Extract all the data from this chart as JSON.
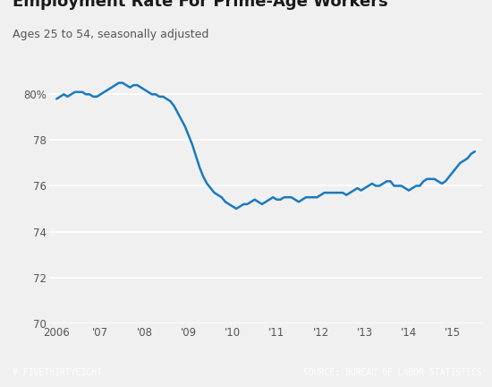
{
  "title": "Employment Rate For Prime-Age Workers",
  "subtitle": "Ages 25 to 54, seasonally adjusted",
  "background_color": "#f0f0f0",
  "plot_background_color": "#f0f0f0",
  "line_color": "#1a7abf",
  "line_width": 1.8,
  "footer_bg_color": "#3d3d3d",
  "footer_text_left": "Ψ FIVETHIRTYEIGHT",
  "footer_text_right": "SOURCE: BUREAU OF LABOR STATISTICS",
  "ylim": [
    70,
    81.5
  ],
  "yticks": [
    70,
    72,
    74,
    76,
    78,
    80
  ],
  "xlabel_labels": [
    "2006",
    "'07",
    "'08",
    "'09",
    "'10",
    "'11",
    "'12",
    "'13",
    "'14",
    "'15"
  ],
  "months": [
    79.8,
    79.9,
    80.0,
    79.9,
    80.0,
    80.1,
    80.1,
    80.1,
    80.0,
    80.0,
    79.9,
    79.9,
    80.0,
    80.1,
    80.2,
    80.3,
    80.4,
    80.5,
    80.5,
    80.4,
    80.3,
    80.4,
    80.4,
    80.3,
    80.2,
    80.1,
    80.0,
    80.0,
    79.9,
    79.9,
    79.8,
    79.7,
    79.5,
    79.2,
    78.9,
    78.6,
    78.2,
    77.8,
    77.3,
    76.8,
    76.4,
    76.1,
    75.9,
    75.7,
    75.6,
    75.5,
    75.3,
    75.2,
    75.1,
    75.0,
    75.1,
    75.2,
    75.2,
    75.3,
    75.4,
    75.3,
    75.2,
    75.3,
    75.4,
    75.5,
    75.4,
    75.4,
    75.5,
    75.5,
    75.5,
    75.4,
    75.3,
    75.4,
    75.5,
    75.5,
    75.5,
    75.5,
    75.6,
    75.7,
    75.7,
    75.7,
    75.7,
    75.7,
    75.7,
    75.6,
    75.7,
    75.8,
    75.9,
    75.8,
    75.9,
    76.0,
    76.1,
    76.0,
    76.0,
    76.1,
    76.2,
    76.2,
    76.0,
    76.0,
    76.0,
    75.9,
    75.8,
    75.9,
    76.0,
    76.0,
    76.2,
    76.3,
    76.3,
    76.3,
    76.2,
    76.1,
    76.2,
    76.4,
    76.6,
    76.8,
    77.0,
    77.1,
    77.2,
    77.4,
    77.5
  ]
}
